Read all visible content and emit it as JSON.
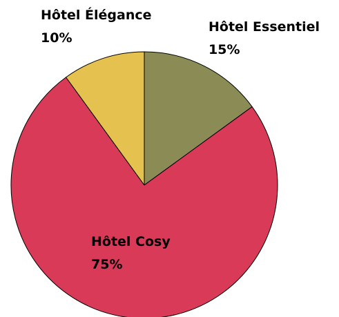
{
  "chart_data": {
    "type": "pie",
    "slices": [
      {
        "label": "Hôtel Essentiel",
        "value": 15,
        "value_label": "15%",
        "color": "#8B8B55"
      },
      {
        "label": "Hôtel Cosy",
        "value": 75,
        "value_label": "75%",
        "color": "#D83A58"
      },
      {
        "label": "Hôtel Élégance",
        "value": 10,
        "value_label": "10%",
        "color": "#E5C150"
      }
    ],
    "start_angle": "12 o'clock",
    "direction": "clockwise",
    "legend": "none"
  }
}
